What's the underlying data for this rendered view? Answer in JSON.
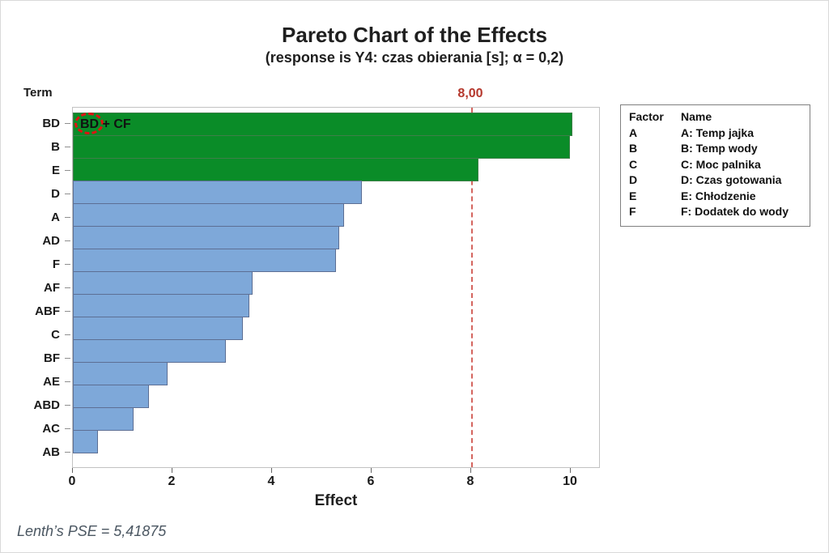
{
  "title": "Pareto Chart of the Effects",
  "subtitle": "(response is Y4: czas obierania [s]; α = 0,2)",
  "y_axis_title": "Term",
  "x_axis_title": "Effect",
  "footnote": "Lenth’s PSE = 5,41875",
  "annotation": {
    "circled": "BD",
    "rest": " + CF"
  },
  "legend": {
    "factor_header": "Factor",
    "name_header": "Name",
    "rows": [
      {
        "factor": "A",
        "name": "A: Temp jajka"
      },
      {
        "factor": "B",
        "name": "B: Temp wody"
      },
      {
        "factor": "C",
        "name": "C: Moc palnika"
      },
      {
        "factor": "D",
        "name": "D: Czas gotowania"
      },
      {
        "factor": "E",
        "name": "E: Chłodzenie"
      },
      {
        "factor": "F",
        "name": "F: Dodatek do wody"
      }
    ]
  },
  "chart_data": {
    "type": "bar",
    "orientation": "horizontal",
    "title": "Pareto Chart of the Effects",
    "subtitle": "(response is Y4: czas obierania [s]; α = 0,2)",
    "xlabel": "Effect",
    "ylabel": "Term",
    "xlim": [
      0,
      10.6
    ],
    "x_ticks": [
      0,
      2,
      4,
      6,
      8,
      10
    ],
    "categories": [
      "BD",
      "B",
      "E",
      "D",
      "A",
      "AD",
      "F",
      "AF",
      "ABF",
      "C",
      "BF",
      "AE",
      "ABD",
      "AC",
      "AB"
    ],
    "values": [
      10.04,
      9.99,
      8.14,
      5.8,
      5.44,
      5.35,
      5.28,
      3.61,
      3.54,
      3.41,
      3.07,
      1.9,
      1.53,
      1.22,
      0.5
    ],
    "significant_terms": [
      "BD",
      "B",
      "E"
    ],
    "reference_line": 8,
    "reference_line_label": "8,00",
    "lenths_pse": "5,41875",
    "legend_position": "right",
    "grid": false
  },
  "colors": {
    "significant_bar": "#0a8c28",
    "significant_bar_border": "#3e7f49",
    "nonsignificant_bar": "#7ea8d9",
    "nonsignificant_bar_border": "#5d6f94",
    "reference_line": "#d4655f",
    "reference_label": "#b5372c",
    "annotation_circle": "#e01212",
    "footnote_text": "#4a5661",
    "plot_border": "#c2c2c2",
    "legend_border": "#808080",
    "tick": "#666666"
  }
}
